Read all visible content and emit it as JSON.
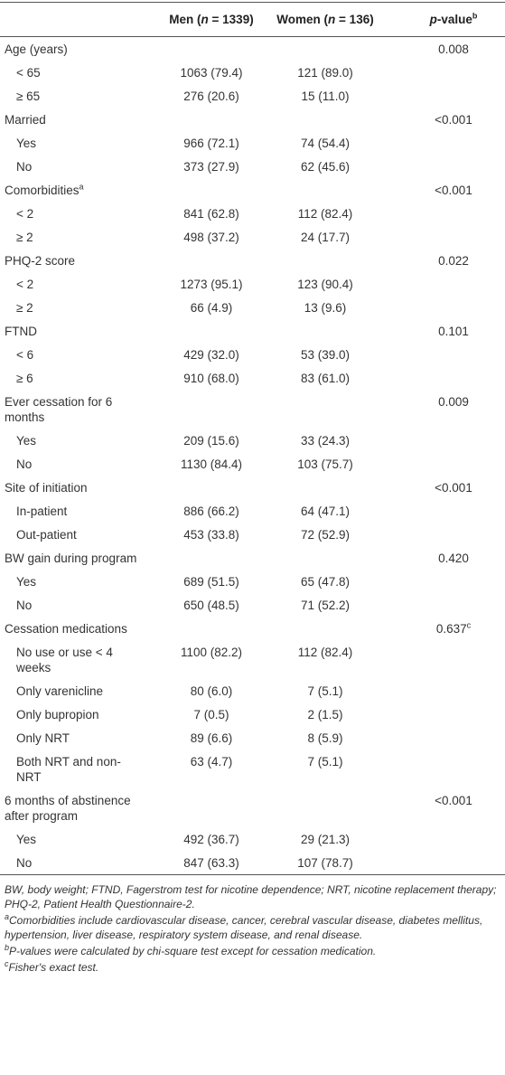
{
  "header": {
    "men": [
      "Men (",
      "n",
      " = 1339)"
    ],
    "women": [
      "Women (",
      "n",
      " = 136)"
    ],
    "p": [
      "p",
      "-value",
      "b"
    ]
  },
  "rows": [
    {
      "label": "Age (years)",
      "p": "0.008"
    },
    {
      "label": "< 65",
      "men": "1063 (79.4)",
      "women": "121 (89.0)"
    },
    {
      "label": "≥ 65",
      "men": "276 (20.6)",
      "women": "15 (11.0)"
    },
    {
      "label": "Married",
      "p": "<0.001"
    },
    {
      "label": "Yes",
      "men": "966 (72.1)",
      "women": "74 (54.4)"
    },
    {
      "label": "No",
      "men": "373 (27.9)",
      "women": "62 (45.6)"
    },
    {
      "label": "Comorbidities",
      "label_sup": "a",
      "p": "<0.001"
    },
    {
      "label": "< 2",
      "men": "841 (62.8)",
      "women": "112 (82.4)"
    },
    {
      "label": "≥ 2",
      "men": "498 (37.2)",
      "women": "24 (17.7)"
    },
    {
      "label": "PHQ-2 score",
      "p": "0.022"
    },
    {
      "label": "< 2",
      "men": "1273 (95.1)",
      "women": "123 (90.4)"
    },
    {
      "label": "≥ 2",
      "men": "66 (4.9)",
      "women": "13 (9.6)"
    },
    {
      "label": "FTND",
      "p": "0.101"
    },
    {
      "label": "< 6",
      "men": "429 (32.0)",
      "women": "53 (39.0)"
    },
    {
      "label": "≥ 6",
      "men": "910 (68.0)",
      "women": "83 (61.0)"
    },
    {
      "label": "Ever cessation for 6 months",
      "p": "0.009"
    },
    {
      "label": "Yes",
      "men": "209 (15.6)",
      "women": "33 (24.3)"
    },
    {
      "label": "No",
      "men": "1130 (84.4)",
      "women": "103 (75.7)"
    },
    {
      "label": "Site of initiation",
      "p": "<0.001"
    },
    {
      "label": "In-patient",
      "men": "886 (66.2)",
      "women": "64 (47.1)"
    },
    {
      "label": "Out-patient",
      "men": "453 (33.8)",
      "women": "72 (52.9)"
    },
    {
      "label": "BW gain during program",
      "p": "0.420"
    },
    {
      "label": "Yes",
      "men": "689 (51.5)",
      "women": "65 (47.8)"
    },
    {
      "label": "No",
      "men": "650 (48.5)",
      "women": "71 (52.2)"
    },
    {
      "label": "Cessation medications",
      "p": "0.637",
      "p_sup": "c"
    },
    {
      "label": "No use or use < 4 weeks",
      "men": "1100 (82.2)",
      "women": "112 (82.4)"
    },
    {
      "label": "Only varenicline",
      "men": "80 (6.0)",
      "women": "7 (5.1)"
    },
    {
      "label": "Only bupropion",
      "men": "7 (0.5)",
      "women": "2 (1.5)"
    },
    {
      "label": "Only NRT",
      "men": "89 (6.6)",
      "women": "8 (5.9)"
    },
    {
      "label": "Both NRT and non-NRT",
      "men": "63 (4.7)",
      "women": "7 (5.1)"
    },
    {
      "label": "6 months of abstinence after program",
      "p": "<0.001"
    },
    {
      "label": "Yes",
      "men": "492 (36.7)",
      "women": "29 (21.3)"
    },
    {
      "label": "No",
      "men": "847 (63.3)",
      "women": "107 (78.7)"
    }
  ],
  "footnotes": [
    {
      "text": "BW, body weight; FTND, Fagerstrom test for nicotine dependence; NRT, nicotine replacement therapy; PHQ-2, Patient Health Questionnaire-2."
    },
    {
      "mark": "a",
      "text": "Comorbidities include cardiovascular disease, cancer, cerebral vascular disease, diabetes mellitus, hypertension, liver disease, respiratory system disease, and renal disease."
    },
    {
      "mark": "b",
      "text": "P-values were calculated by chi-square test except for cessation medication."
    },
    {
      "mark": "c",
      "text": "Fisher's exact test."
    }
  ]
}
